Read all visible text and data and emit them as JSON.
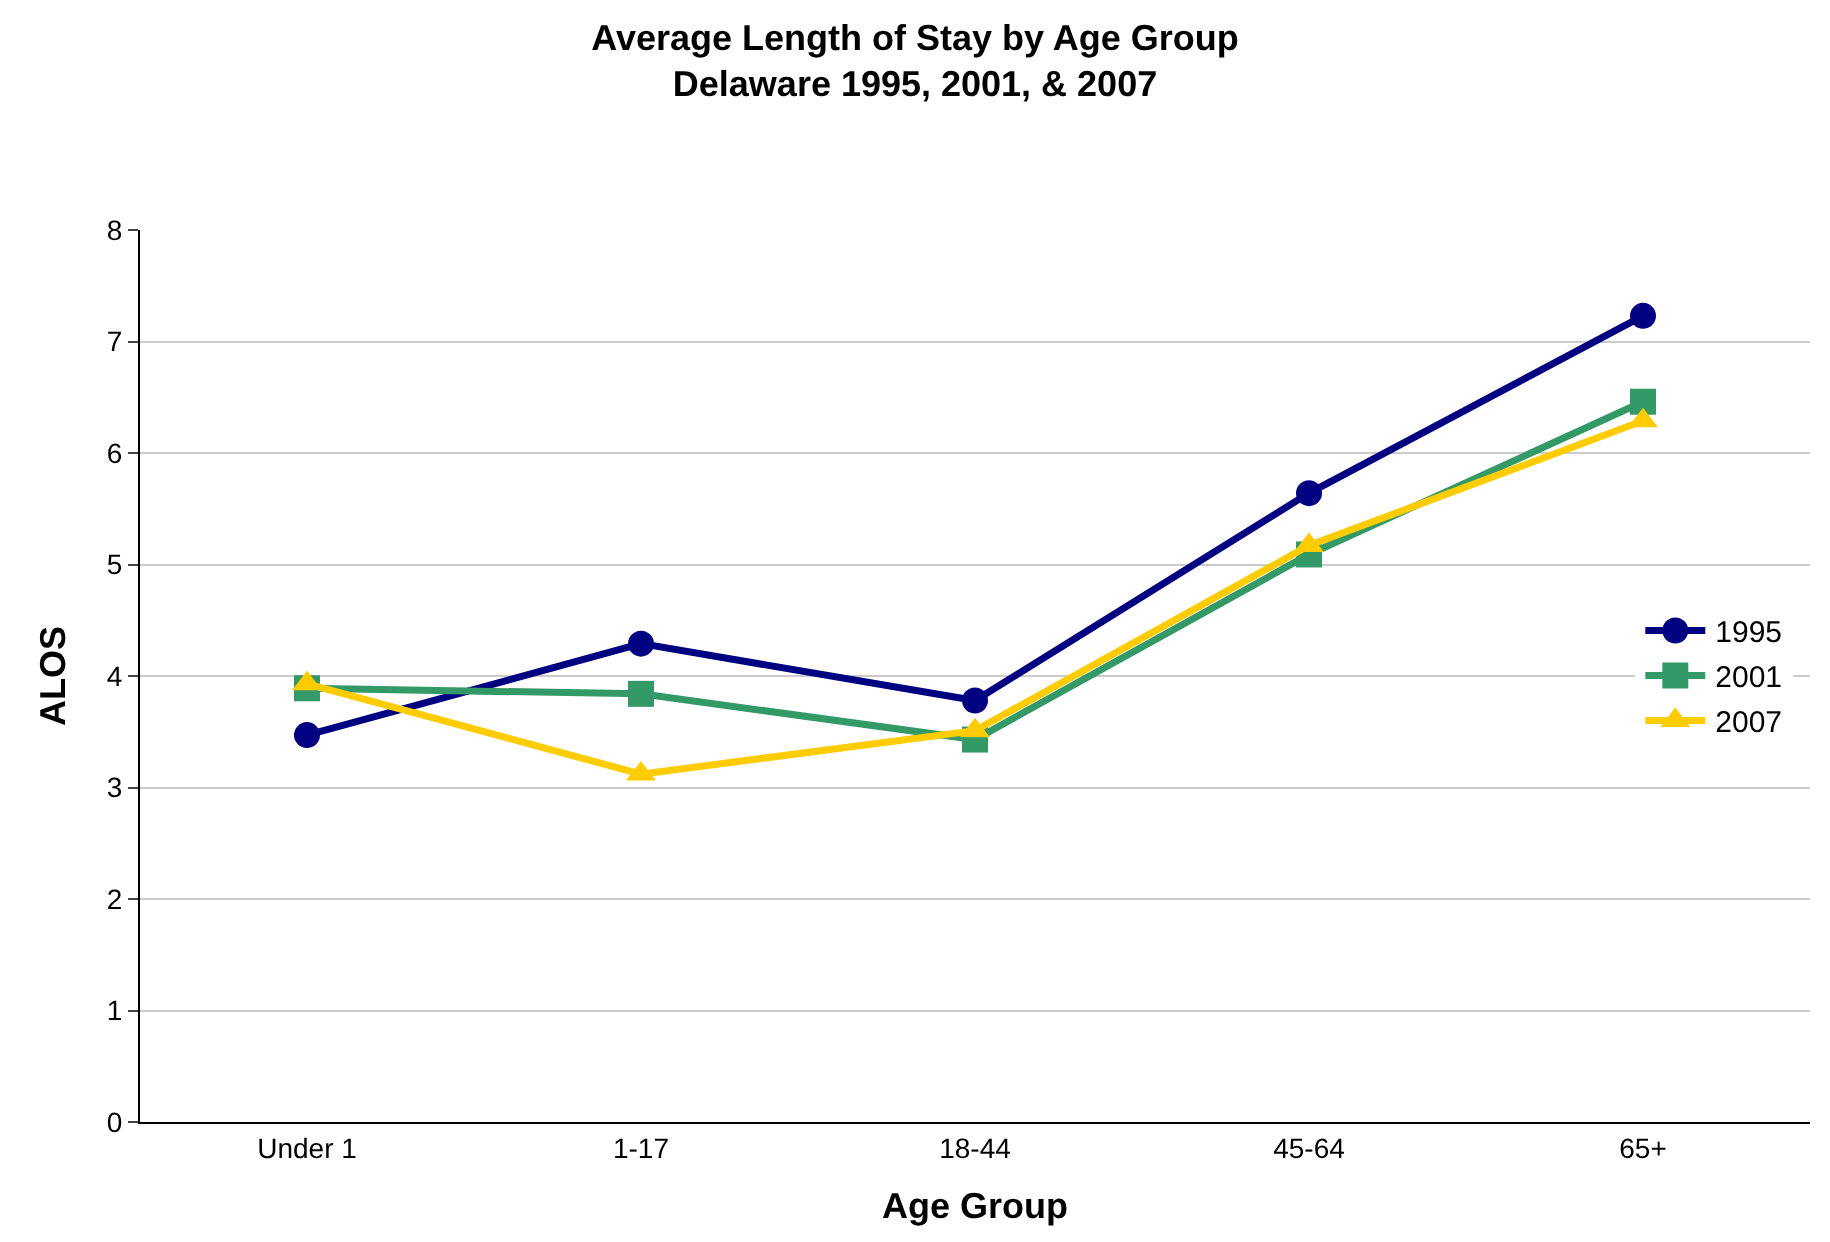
{
  "chart_data": {
    "type": "line",
    "title": "Average Length of Stay by Age Group",
    "subtitle": "Delaware 1995, 2001, & 2007",
    "xlabel": "Age Group",
    "ylabel": "ALOS",
    "categories": [
      "Under 1",
      "1-17",
      "18-44",
      "45-64",
      "65+"
    ],
    "series": [
      {
        "name": "1995",
        "color": "#000080",
        "marker": "circle",
        "values": [
          3.47,
          4.29,
          3.78,
          5.64,
          7.23
        ]
      },
      {
        "name": "2001",
        "color": "#339966",
        "marker": "square",
        "values": [
          3.89,
          3.84,
          3.43,
          5.09,
          6.46
        ]
      },
      {
        "name": "2007",
        "color": "#ffcc00",
        "marker": "triangle",
        "values": [
          3.93,
          3.12,
          3.51,
          5.17,
          6.29
        ]
      }
    ],
    "ylim": [
      0,
      8
    ],
    "yticks": [
      0,
      1,
      2,
      3,
      4,
      5,
      6,
      7,
      8
    ],
    "grid": "y",
    "legend": "right",
    "line_style": "solid"
  }
}
